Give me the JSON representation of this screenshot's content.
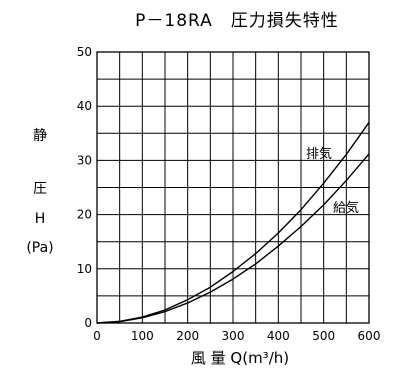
{
  "chart_data": {
    "type": "line",
    "title": "P－18RA　圧力損失特性",
    "xlabel": "風 量 Q(m³/h)",
    "ylabel_lines": [
      "静",
      "圧",
      "H",
      "(Pa)"
    ],
    "xlim": [
      0,
      600
    ],
    "ylim": [
      0,
      50
    ],
    "x_ticks": [
      0,
      100,
      200,
      300,
      400,
      500,
      600
    ],
    "y_ticks": [
      0,
      10,
      20,
      30,
      40,
      50
    ],
    "x_tick_labels": [
      "0",
      "100",
      "200",
      "300",
      "400",
      "500",
      "600"
    ],
    "y_tick_labels": [
      "0",
      "10",
      "20",
      "30",
      "40",
      "50"
    ],
    "grid": true,
    "series": [
      {
        "name": "排気",
        "x": [
          0,
          50,
          100,
          150,
          200,
          250,
          300,
          350,
          400,
          450,
          500,
          550,
          600
        ],
        "y": [
          0,
          0.3,
          1.1,
          2.4,
          4.3,
          6.6,
          9.5,
          12.8,
          16.6,
          20.9,
          25.8,
          31.1,
          37.0
        ]
      },
      {
        "name": "給気",
        "x": [
          0,
          50,
          100,
          150,
          200,
          250,
          300,
          350,
          400,
          450,
          500,
          550,
          600
        ],
        "y": [
          0,
          0.25,
          0.95,
          2.1,
          3.7,
          5.7,
          8.1,
          10.9,
          14.2,
          17.8,
          21.8,
          26.3,
          31.2
        ]
      }
    ]
  }
}
